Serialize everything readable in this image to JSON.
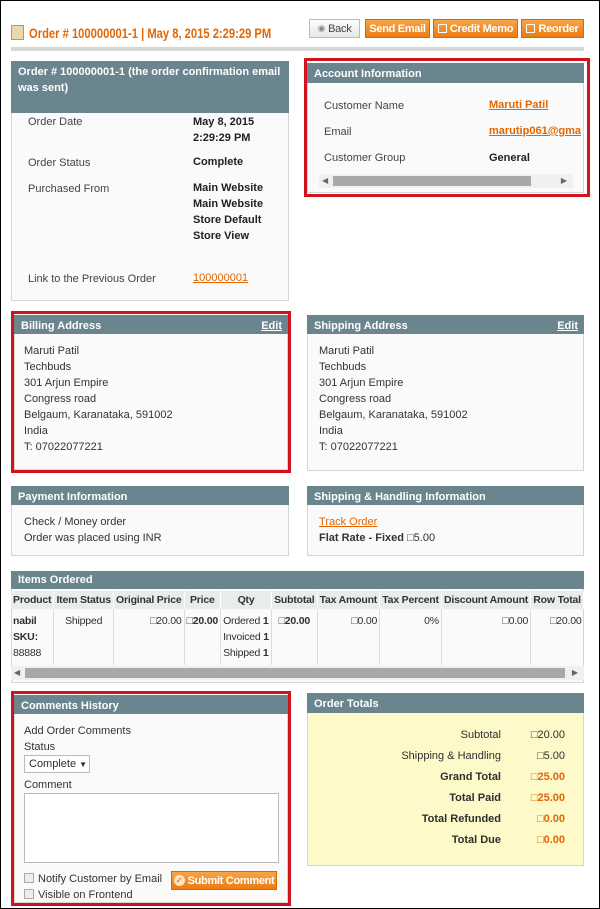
{
  "header": {
    "title": "Order # 100000001-1 | May 8, 2015 2:29:29 PM",
    "buttons": {
      "back": "Back",
      "send_email": "Send Email",
      "credit_memo": "Credit Memo",
      "reorder": "Reorder"
    }
  },
  "order": {
    "title": "Order # 100000001-1 (the order confirmation email was sent)",
    "rows": [
      {
        "label": "Order Date",
        "value": "May 8, 2015 2:29:29 PM"
      },
      {
        "label": "Order Status",
        "value": "Complete"
      },
      {
        "label": "Purchased From",
        "value": "Main Website Main Website Store Default Store View"
      },
      {
        "label": "Link to the Previous Order",
        "value": "100000001"
      }
    ]
  },
  "account": {
    "title": "Account Information",
    "rows": [
      {
        "label": "Customer Name",
        "value": "Maruti Patil"
      },
      {
        "label": "Email",
        "value": "marutip061@gma"
      },
      {
        "label": "Customer Group",
        "value": "General"
      }
    ]
  },
  "billing": {
    "title": "Billing Address",
    "edit": "Edit",
    "lines": [
      "Maruti Patil",
      "Techbuds",
      "301 Arjun Empire",
      "Congress road",
      "Belgaum, Karanataka, 591002",
      "India",
      "T: 07022077221"
    ]
  },
  "shipping": {
    "title": "Shipping Address",
    "edit": "Edit",
    "lines": [
      "Maruti Patil",
      "Techbuds",
      "301 Arjun Empire",
      "Congress road",
      "Belgaum, Karanataka, 591002",
      "India",
      "T: 07022077221"
    ]
  },
  "payment": {
    "title": "Payment Information",
    "lines": [
      "Check / Money order",
      "Order was placed using INR"
    ]
  },
  "shipping_handling": {
    "title": "Shipping & Handling Information",
    "track": "Track Order",
    "method": "Flat Rate - Fixed",
    "amount": "□5.00"
  },
  "items": {
    "title": "Items Ordered",
    "columns": [
      "Product",
      "Item Status",
      "Original Price",
      "Price",
      "Qty",
      "Subtotal",
      "Tax Amount",
      "Tax Percent",
      "Discount Amount",
      "Row Total"
    ],
    "row": {
      "product": "nabil",
      "sku_label": "SKU:",
      "sku": "88888",
      "status": "Shipped",
      "original_price": "□20.00",
      "price": "□20.00",
      "qty": [
        {
          "label": "Ordered",
          "n": "1"
        },
        {
          "label": "Invoiced",
          "n": "1"
        },
        {
          "label": "Shipped",
          "n": "1"
        }
      ],
      "subtotal": "□20.00",
      "tax_amount": "□0.00",
      "tax_percent": "0%",
      "discount": "□0.00",
      "row_total": "□20.00"
    }
  },
  "comments": {
    "title": "Comments History",
    "add": "Add Order Comments",
    "status_label": "Status",
    "status_value": "Complete",
    "comment_label": "Comment",
    "notify": "Notify Customer by Email",
    "visible": "Visible on Frontend",
    "submit": "Submit Comment"
  },
  "totals": {
    "title": "Order Totals",
    "rows": [
      {
        "label": "Subtotal",
        "value": "□20.00"
      },
      {
        "label": "Shipping & Handling",
        "value": "□5.00"
      },
      {
        "label": "Grand Total",
        "value": "□25.00"
      },
      {
        "label": "Total Paid",
        "value": "□25.00"
      },
      {
        "label": "Total Refunded",
        "value": "□0.00"
      },
      {
        "label": "Total Due",
        "value": "□0.00"
      }
    ]
  },
  "colors": {
    "accent": "#e26703",
    "header_bar": "#6a858e",
    "highlight": "#d0131c",
    "totals_bg": "#fdf9c9"
  }
}
